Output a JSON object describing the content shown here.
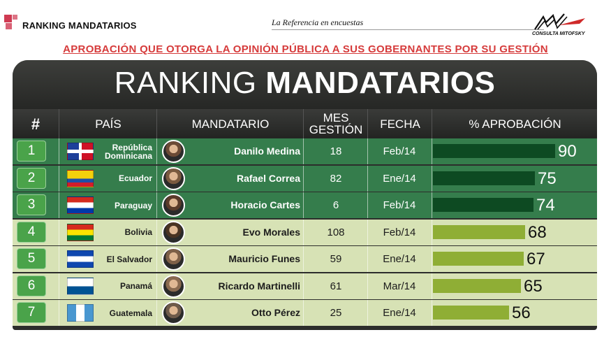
{
  "header": {
    "brand": "RANKING MANDATARIOS",
    "tagline": "La Referencia en encuestas",
    "firm": "CONSULTA MITOFSKY",
    "subtitle": "APROBACIÓN QUE OTORGA LA OPINIÓN PÚBLICA A SUS GOBERNANTES POR SU GESTIÓN"
  },
  "table": {
    "title_light": "RANKING ",
    "title_bold": "MANDATARIOS",
    "columns": {
      "rank": "#",
      "country": "PAÍS",
      "leader": "MANDATARIO",
      "months_l1": "MES",
      "months_l2": "GESTIÓN",
      "date": "FECHA",
      "approval": "% APROBACIÓN"
    }
  },
  "colors": {
    "dark_row": "#357d4c",
    "light_row": "#d7e2b5",
    "dark_bar": "#0d4a22",
    "light_bar": "#8fae35",
    "accent_red": "#d63b3b"
  },
  "chart_data": {
    "type": "bar",
    "orientation": "horizontal",
    "title": "RANKING MANDATARIOS",
    "subtitle": "APROBACIÓN QUE OTORGA LA OPINIÓN PÚBLICA A SUS GOBERNANTES POR SU GESTIÓN",
    "value_label": "% APROBACIÓN",
    "xlim": [
      0,
      100
    ],
    "rows": [
      {
        "rank": "1",
        "country": "República Dominicana",
        "leader": "Danilo Medina",
        "months": "18",
        "date": "Feb/14",
        "approval": 90,
        "flag": "dominican-republic-flag",
        "tier": "top"
      },
      {
        "rank": "2",
        "country": "Ecuador",
        "leader": "Rafael Correa",
        "months": "82",
        "date": "Ene/14",
        "approval": 75,
        "flag": "ecuador-flag",
        "tier": "top"
      },
      {
        "rank": "3",
        "country": "Paraguay",
        "leader": "Horacio Cartes",
        "months": "6",
        "date": "Feb/14",
        "approval": 74,
        "flag": "paraguay-flag",
        "tier": "top"
      },
      {
        "rank": "4",
        "country": "Bolivia",
        "leader": "Evo Morales",
        "months": "108",
        "date": "Feb/14",
        "approval": 68,
        "flag": "bolivia-flag",
        "tier": "rest"
      },
      {
        "rank": "5",
        "country": "El Salvador",
        "leader": "Mauricio Funes",
        "months": "59",
        "date": "Ene/14",
        "approval": 67,
        "flag": "el-salvador-flag",
        "tier": "rest"
      },
      {
        "rank": "6",
        "country": "Panamá",
        "leader": "Ricardo Martinelli",
        "months": "61",
        "date": "Mar/14",
        "approval": 65,
        "flag": "panama-flag",
        "tier": "rest"
      },
      {
        "rank": "7",
        "country": "Guatemala",
        "leader": "Otto Pérez",
        "months": "25",
        "date": "Ene/14",
        "approval": 56,
        "flag": "guatemala-flag",
        "tier": "rest"
      }
    ]
  }
}
